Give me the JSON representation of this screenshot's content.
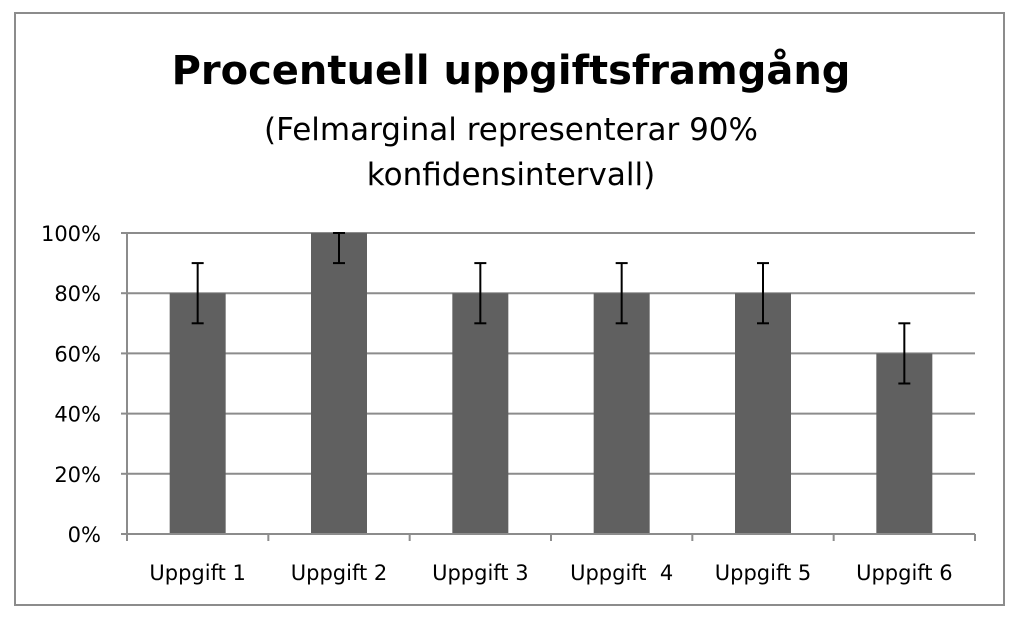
{
  "chart_data": {
    "type": "bar",
    "title": "Procentuell uppgiftsframgång",
    "subtitle_lines": [
      "(Felmarginal representerar 90%",
      "konfidensintervall)"
    ],
    "categories": [
      "Uppgift 1",
      "Uppgift 2",
      "Uppgift 3",
      "Uppgift  4",
      "Uppgift 5",
      "Uppgift 6"
    ],
    "values": [
      80,
      100,
      80,
      80,
      80,
      60
    ],
    "error_low": [
      70,
      90,
      70,
      70,
      70,
      50
    ],
    "error_high": [
      90,
      100,
      90,
      90,
      90,
      70
    ],
    "ylim": [
      0,
      100
    ],
    "yticks": [
      0,
      20,
      40,
      60,
      80,
      100
    ],
    "ytick_labels": [
      "0%",
      "20%",
      "40%",
      "60%",
      "80%",
      "100%"
    ],
    "xlabel": "",
    "ylabel": "",
    "grid": true,
    "legend": "none",
    "bar_color": "#606060"
  }
}
